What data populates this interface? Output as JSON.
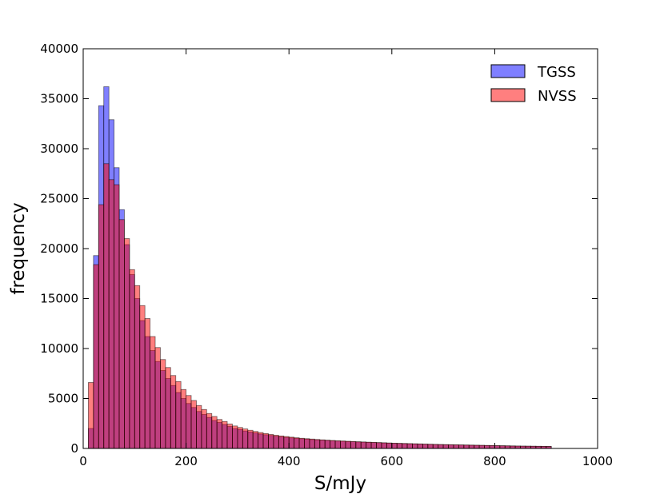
{
  "chart_data": {
    "type": "bar",
    "title": "",
    "xlabel": "S/mJy",
    "ylabel": "frequency",
    "xlim": [
      0,
      1000
    ],
    "ylim": [
      0,
      40000
    ],
    "xticks": [
      0,
      200,
      400,
      600,
      800,
      1000
    ],
    "yticks": [
      0,
      5000,
      10000,
      15000,
      20000,
      25000,
      30000,
      35000,
      40000
    ],
    "grid": false,
    "legend_position": "top-right",
    "bin_width": 10,
    "bin_start": 10,
    "series": [
      {
        "name": "TGSS",
        "color": "#0000ff",
        "opacity": 0.5,
        "values": [
          2000,
          19300,
          34300,
          36200,
          32900,
          28100,
          23900,
          20400,
          17400,
          15000,
          12800,
          11200,
          9800,
          8700,
          7800,
          7000,
          6300,
          5600,
          5000,
          4500,
          4100,
          3700,
          3400,
          3100,
          2800,
          2600,
          2400,
          2200,
          2000,
          1900,
          1750,
          1650,
          1550,
          1450,
          1370,
          1300,
          1230,
          1170,
          1110,
          1060,
          1010,
          970,
          930,
          890,
          860,
          830,
          800,
          770,
          740,
          710,
          690,
          670,
          650,
          630,
          610,
          590,
          570,
          550,
          530,
          510,
          495,
          480,
          465,
          450,
          435,
          420,
          405,
          390,
          380,
          370,
          360,
          350,
          340,
          330,
          320,
          310,
          300,
          290,
          280,
          270,
          260,
          250,
          240,
          230,
          225,
          220,
          215,
          210,
          205,
          200
        ]
      },
      {
        "name": "NVSS",
        "color": "#ff0000",
        "opacity": 0.5,
        "values": [
          6600,
          18400,
          24400,
          28500,
          26900,
          26400,
          22900,
          21000,
          17900,
          16300,
          14300,
          13000,
          11200,
          10100,
          8900,
          8100,
          7300,
          6700,
          5900,
          5300,
          4800,
          4300,
          3900,
          3500,
          3200,
          2900,
          2700,
          2450,
          2250,
          2100,
          1950,
          1820,
          1700,
          1590,
          1490,
          1400,
          1320,
          1250,
          1190,
          1130,
          1070,
          1020,
          980,
          940,
          900,
          860,
          830,
          800,
          770,
          745,
          720,
          695,
          670,
          650,
          630,
          610,
          590,
          570,
          550,
          530,
          515,
          500,
          485,
          470,
          455,
          440,
          425,
          410,
          395,
          385,
          375,
          365,
          355,
          345,
          335,
          325,
          315,
          305,
          295,
          285,
          275,
          265,
          255,
          245,
          238,
          232,
          226,
          220,
          214,
          208
        ]
      }
    ]
  }
}
